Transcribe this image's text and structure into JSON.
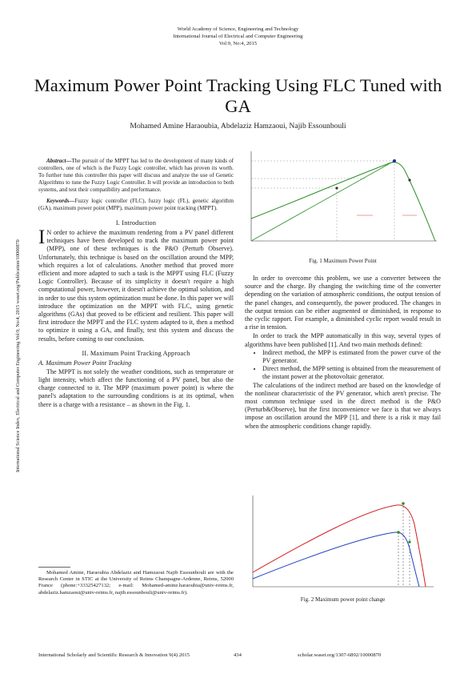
{
  "header": {
    "line1": "World Academy of Science, Engineering and Technology",
    "line2": "International Journal of Electrical and Computer Engineering",
    "line3": "Vol:9, No:4, 2015"
  },
  "title": "Maximum Power Point Tracking Using FLC Tuned with GA",
  "authors": "Mohamed Amine Haraoubia, Abdelaziz Hamzaoui, Najib Essounbouli",
  "sidebar": "International Science Index, Electrical and Computer Engineering Vol:9, No:4, 2015 waset.org/Publication/10000870",
  "abstract": {
    "label": "Abstract",
    "text": "The pursuit of the MPPT has led to the development of many kinds of controllers, one of which is the Fuzzy Logic controller, which has proven its worth. To further tune this controller this paper will discuss and analyze the use of Genetic Algorithms to tune the Fuzzy Logic Controller. It will provide an introduction to both systems, and test their compatibility and performance."
  },
  "keywords": {
    "label": "Keywords",
    "text": "Fuzzy logic controller (FLC), fuzzy logic (FL), genetic algorithm (GA), maximum power point (MPP), maximum power point tracking (MPPT)."
  },
  "section1": {
    "heading": "I. Introduction",
    "dropcap": "I",
    "text": "N order to achieve the maximum rendering from a PV panel different techniques have been developed to track the maximum power point (MPP), one of these techniques is the P&O (Perturb Observe). Unfortunately, this technique is based on the oscillation around the MPP, which requires a lot of calculations. Another method that proved more efficient and more adapted to such a task is the MPPT using FLC (Fuzzy Logic Controller). Because of its simplicity it doesn't require a high computational power, however, it doesn't achieve the optimal solution, and in order to use this system optimization must be done. In this paper we will introduce the optimization on the MPPT with FLC, using genetic algorithms (GAs) that proved to be efficient and resilient. This paper will first introduce the MPPT and the FLC system adapted to it, then a method to optimize it using a GA, and finally, test this system and discuss the results, before coming to our conclusion."
  },
  "section2": {
    "heading": "II. Maximum Point Tracking Approach",
    "subheading": "A. Maximum Power Point Tracking",
    "text": "The MPPT is not solely the weather conditions, such as temperature or light intensity, which affect the functioning of a PV panel, but also the charge connected to it. The MPP (maximum power point) is where the panel's adaptation to the surrounding conditions is at its optimal, when there is a charge with a resistance – as shown in the Fig. 1."
  },
  "footnote": "Mohamed Amine, Haraoubia Abdelaziz and Hamzaoui Najib Essounbouli are with the Research Center in STIC at the University of Reims Champagne-Ardenne, Reims, 52000 France (phone:+33325427132; e-mail: Mohamed-amine.haraoubia@univ-reims.fr, abdelaziz.hamzaoui@univ-reims.fr, najib.essounbouli@univ-reims.fr).",
  "fig1": {
    "caption": "Fig. 1 Maximum Power Point"
  },
  "right": {
    "p1": "In order to overcome this problem, we use a converter between the source and the charge. By changing the switching time of the converter depending on the variation of atmospheric conditions, the output tension of the panel changes, and consequently, the power produced. The changes in the output tension can be either augmented or diminished, in response to the cyclic rapport. For example, a diminished cyclic report would result in a rise in tension.",
    "p2": "In order to track the MPP automatically in this way, several types of algorithms have been published [1]. And two main methods defined:",
    "bullets": [
      "Indirect method, the MPP is estimated from the power curve of the PV generator.",
      "Direct method, the MPP setting is obtained from the measurement of the instant power at the photovoltaic generator."
    ],
    "p3": "The calculations of the indirect method are based on the knowledge of the nonlinear characteristic of the PV generator, which aren't precise. The most common technique used in the direct method is the P&O (Perturb&Observe), but the first inconvenience we face is that we always impose an oscillation around the MPP [1], and there is a risk it may fail when the atmospheric conditions change rapidly."
  },
  "fig2": {
    "caption": "Fig. 2 Maximum power point change"
  },
  "footer": {
    "left": "International Scholarly and Scientific Research & Innovation 9(4) 2015",
    "center": "434",
    "right": "scholar.waset.org/1307-6892/10000870"
  }
}
